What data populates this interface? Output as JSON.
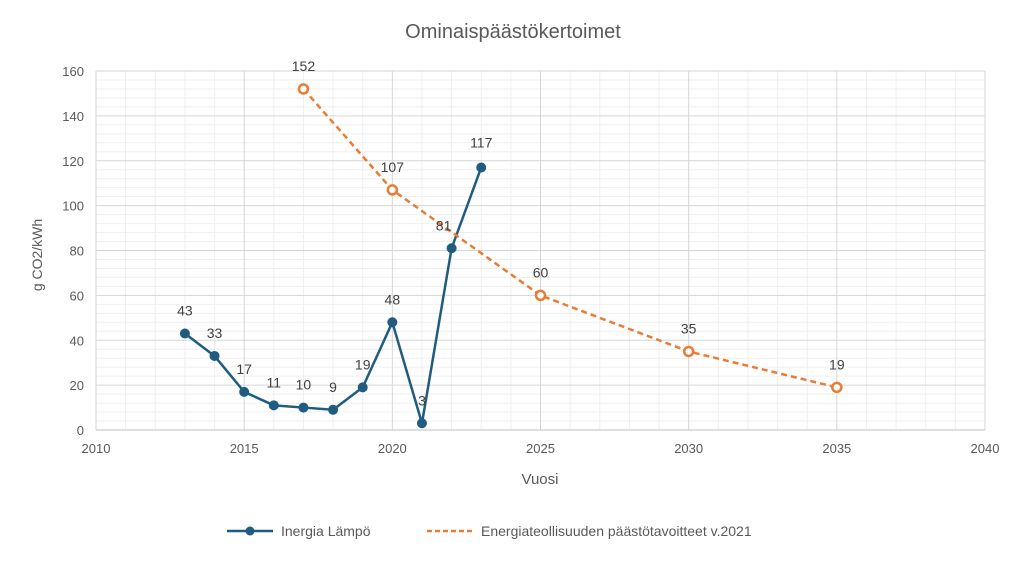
{
  "chart_data": {
    "type": "line",
    "title": "Ominaispäästökertoimet",
    "xlabel": "Vuosi",
    "ylabel": "g CO2/kWh",
    "xlim": [
      2010,
      2040
    ],
    "ylim": [
      0,
      160
    ],
    "x_ticks": [
      2010,
      2015,
      2020,
      2025,
      2030,
      2035,
      2040
    ],
    "y_ticks": [
      0,
      20,
      40,
      60,
      80,
      100,
      120,
      140,
      160
    ],
    "x_tick_labels": [
      "2010",
      "2015",
      "2020",
      "2025",
      "2030",
      "2035",
      "2040"
    ],
    "y_tick_labels": [
      "0",
      "20",
      "40",
      "60",
      "80",
      "100",
      "120",
      "140",
      "160"
    ],
    "grid": true,
    "legend_position": "bottom",
    "series": [
      {
        "name": "Inergia Lämpö",
        "color": "#1f5c80",
        "style": "solid",
        "marker": "filled-circle",
        "x": [
          2013,
          2014,
          2015,
          2016,
          2017,
          2018,
          2019,
          2020,
          2021,
          2022,
          2023
        ],
        "y": [
          43,
          33,
          17,
          11,
          10,
          9,
          19,
          48,
          3,
          81,
          117
        ],
        "labels": [
          "43",
          "33",
          "17",
          "11",
          "10",
          "9",
          "19",
          "48",
          "3",
          "81",
          "117"
        ]
      },
      {
        "name": "Energiateollisuuden päästötavoitteet v.2021",
        "color": "#e87d35",
        "style": "dashed",
        "marker": "open-circle",
        "x": [
          2017,
          2020,
          2025,
          2030,
          2035
        ],
        "y": [
          152,
          107,
          60,
          35,
          19
        ],
        "labels": [
          "152",
          "107",
          "60",
          "35",
          "19"
        ]
      }
    ]
  }
}
